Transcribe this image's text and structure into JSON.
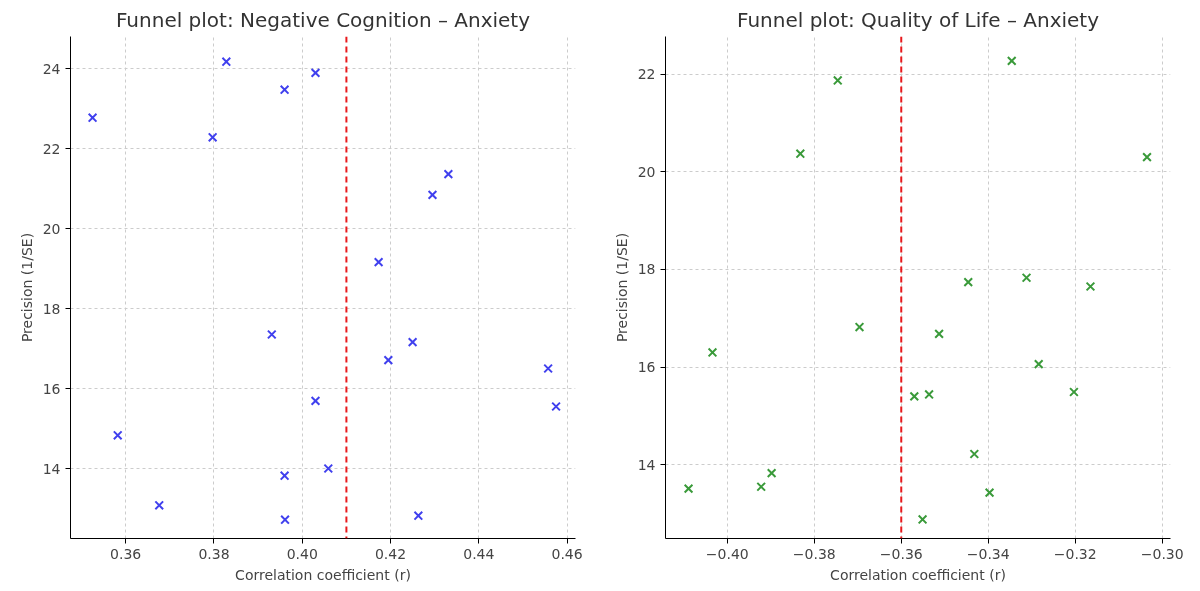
{
  "chart_data": [
    {
      "type": "scatter",
      "title": "Funnel plot: Negative Cognition – Anxiety",
      "xlabel": "Correlation coefficient (r)",
      "ylabel": "Precision (1/SE)",
      "x": [
        0.3525,
        0.3828,
        0.396,
        0.403,
        0.3797,
        0.4331,
        0.4295,
        0.4173,
        0.3931,
        0.425,
        0.4195,
        0.4557,
        0.4575,
        0.403,
        0.3582,
        0.3676,
        0.396,
        0.4059,
        0.3961,
        0.4263
      ],
      "series": [
        {
          "color": "#4040ee",
          "values": [
            22.77,
            24.17,
            23.47,
            23.89,
            22.28,
            21.36,
            20.84,
            19.16,
            17.35,
            17.16,
            16.71,
            16.5,
            15.55,
            15.69,
            14.83,
            13.08,
            13.82,
            14.0,
            12.72,
            12.82
          ]
        }
      ],
      "marker": "cross",
      "grid": true,
      "xlim": [
        0.3475,
        0.4619
      ],
      "ylim": [
        12.25,
        24.8
      ],
      "xticks": [
        {
          "value": 0.36,
          "label": "0.36"
        },
        {
          "value": 0.38,
          "label": "0.38"
        },
        {
          "value": 0.4,
          "label": "0.40"
        },
        {
          "value": 0.42,
          "label": "0.42"
        },
        {
          "value": 0.44,
          "label": "0.44"
        },
        {
          "value": 0.46,
          "label": "0.46"
        }
      ],
      "yticks": [
        14,
        16,
        18,
        20,
        22,
        24
      ],
      "ref_lines": [
        {
          "axis": "x",
          "value": 0.41,
          "color": "#e8191c",
          "line_style": "dashed"
        }
      ]
    },
    {
      "type": "scatter",
      "title": "Funnel plot: Quality of Life – Anxiety",
      "xlabel": "Correlation coefficient (r)",
      "ylabel": "Precision (1/SE)",
      "x": [
        -0.4089,
        -0.4034,
        -0.3922,
        -0.3898,
        -0.3832,
        -0.3746,
        -0.3696,
        -0.357,
        -0.3536,
        -0.3551,
        -0.3513,
        -0.3446,
        -0.3432,
        -0.3397,
        -0.3346,
        -0.3312,
        -0.3284,
        -0.3203,
        -0.3165,
        -0.3035
      ],
      "series": [
        {
          "color": "#3a9a3a",
          "values": [
            13.51,
            16.3,
            13.55,
            13.83,
            20.37,
            21.87,
            16.82,
            15.4,
            15.44,
            12.88,
            16.68,
            17.74,
            14.22,
            13.43,
            22.27,
            17.83,
            16.06,
            15.49,
            17.65,
            20.3
          ]
        }
      ],
      "marker": "cross",
      "grid": true,
      "xlim": [
        -0.4142,
        -0.2981
      ],
      "ylim": [
        12.49,
        22.77
      ],
      "xticks": [
        {
          "value": -0.4,
          "label": "−0.40"
        },
        {
          "value": -0.38,
          "label": "−0.38"
        },
        {
          "value": -0.36,
          "label": "−0.36"
        },
        {
          "value": -0.34,
          "label": "−0.34"
        },
        {
          "value": -0.32,
          "label": "−0.32"
        },
        {
          "value": -0.3,
          "label": "−0.30"
        }
      ],
      "yticks": [
        14,
        16,
        18,
        20,
        22
      ],
      "ref_lines": [
        {
          "axis": "x",
          "value": -0.36,
          "color": "#e8191c",
          "line_style": "dashed"
        }
      ]
    }
  ]
}
